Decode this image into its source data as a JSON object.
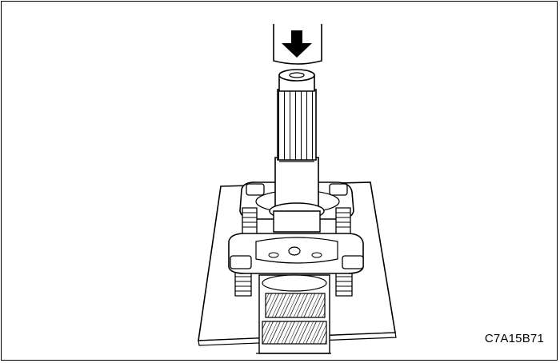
{
  "figure": {
    "code": "C7A15B71",
    "colors": {
      "line": "#000000",
      "fill": "#ffffff",
      "shade": "#b8b8b8"
    }
  }
}
